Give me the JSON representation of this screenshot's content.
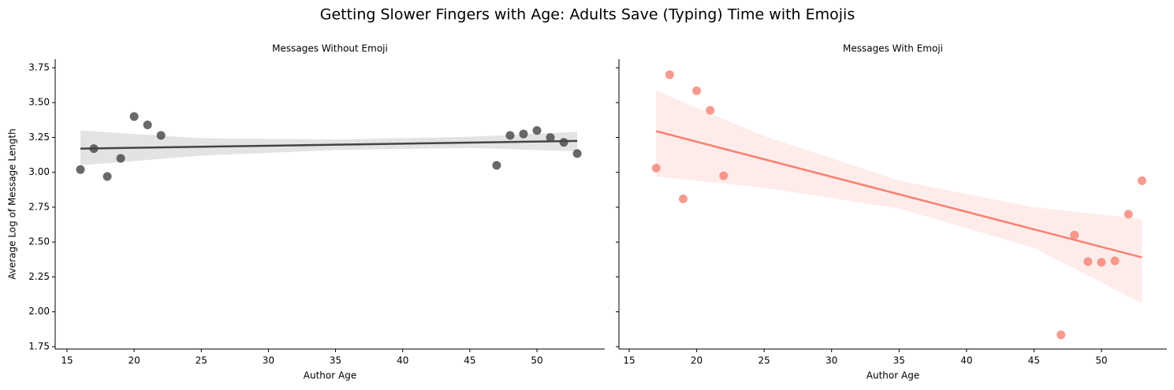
{
  "title": "Getting Slower Fingers with Age: Adults Save (Typing) Time with Emojis",
  "chart_data": [
    {
      "type": "scatter",
      "title": "Messages Without Emoji",
      "xlabel": "Author Age",
      "ylabel": "Average Log of Message Length",
      "color": "#444444",
      "x": [
        16,
        17,
        18,
        19,
        20,
        21,
        22,
        47,
        48,
        49,
        50,
        51,
        52,
        53
      ],
      "values": [
        3.02,
        3.17,
        2.97,
        3.1,
        3.4,
        3.34,
        3.265,
        3.05,
        3.265,
        3.275,
        3.3,
        3.25,
        3.215,
        3.135
      ],
      "fit": {
        "x": [
          16,
          53
        ],
        "y": [
          3.17,
          3.225
        ]
      },
      "ci_band": {
        "x": [
          16,
          25,
          35,
          45,
          53
        ],
        "upper": [
          3.3,
          3.245,
          3.235,
          3.255,
          3.29
        ],
        "lower": [
          3.05,
          3.12,
          3.16,
          3.175,
          3.15
        ]
      },
      "xlim": [
        14.12,
        55.05
      ],
      "ylim": [
        1.733,
        3.812
      ],
      "xticks": [
        15,
        20,
        25,
        30,
        35,
        40,
        45,
        50
      ],
      "yticks": [
        1.75,
        {
          "value": 2,
          "label": "2.00"
        },
        2.25,
        {
          "value": 2.5,
          "label": "2.50"
        },
        2.75,
        {
          "value": 3,
          "label": "3.00"
        },
        3.25,
        {
          "value": 3.5,
          "label": "3.50"
        },
        3.75
      ]
    },
    {
      "type": "scatter",
      "title": "Messages With Emoji",
      "xlabel": "Author Age",
      "color": "#fa8072",
      "x": [
        17,
        18,
        19,
        20,
        21,
        22,
        47,
        48,
        49,
        50,
        51,
        52,
        53
      ],
      "values": [
        3.03,
        3.7,
        2.81,
        3.585,
        3.445,
        2.975,
        1.835,
        2.55,
        2.36,
        2.355,
        2.365,
        2.7,
        2.94
      ],
      "fit": {
        "x": [
          17,
          53
        ],
        "y": [
          3.295,
          2.39
        ]
      },
      "ci_band": {
        "x": [
          17,
          25,
          35,
          45,
          53
        ],
        "upper": [
          3.585,
          3.26,
          2.94,
          2.75,
          2.665
        ],
        "lower": [
          2.97,
          2.89,
          2.74,
          2.46,
          2.06
        ]
      },
      "xlim": [
        14.24,
        54.85
      ],
      "ylim": [
        1.733,
        3.812
      ],
      "xticks": [
        15,
        20,
        25,
        30,
        35,
        40,
        45,
        50
      ],
      "yticks": [
        1.75,
        2,
        2.25,
        2.5,
        2.75,
        3,
        3.25,
        3.5,
        3.75
      ]
    }
  ]
}
